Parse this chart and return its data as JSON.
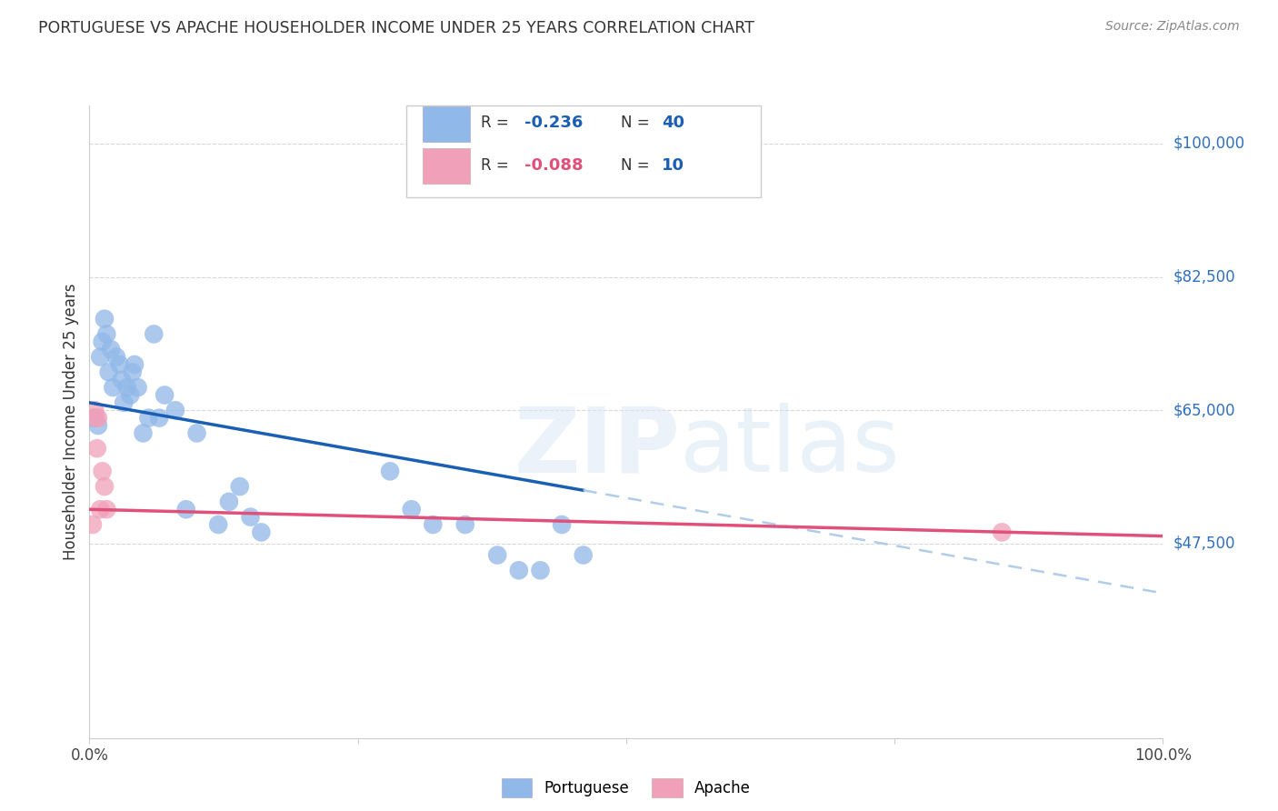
{
  "title": "PORTUGUESE VS APACHE HOUSEHOLDER INCOME UNDER 25 YEARS CORRELATION CHART",
  "source": "Source: ZipAtlas.com",
  "ylabel": "Householder Income Under 25 years",
  "y_tick_labels": [
    "$47,500",
    "$65,000",
    "$82,500",
    "$100,000"
  ],
  "y_tick_values": [
    47500,
    65000,
    82500,
    100000
  ],
  "xlim": [
    0.0,
    1.0
  ],
  "ylim": [
    22000,
    105000
  ],
  "portuguese_color": "#90b8e8",
  "apache_color": "#f0a0b8",
  "regression_blue": "#1a5fb4",
  "regression_pink": "#e0507a",
  "regression_dashed_color": "#b0cce8",
  "portuguese_x": [
    0.004,
    0.008,
    0.01,
    0.012,
    0.014,
    0.016,
    0.018,
    0.02,
    0.022,
    0.025,
    0.028,
    0.03,
    0.032,
    0.035,
    0.038,
    0.04,
    0.042,
    0.045,
    0.05,
    0.055,
    0.06,
    0.065,
    0.07,
    0.08,
    0.09,
    0.1,
    0.12,
    0.13,
    0.14,
    0.15,
    0.16,
    0.28,
    0.3,
    0.32,
    0.35,
    0.38,
    0.4,
    0.42,
    0.44,
    0.46
  ],
  "portuguese_y": [
    64000,
    63000,
    72000,
    74000,
    77000,
    75000,
    70000,
    73000,
    68000,
    72000,
    71000,
    69000,
    66000,
    68000,
    67000,
    70000,
    71000,
    68000,
    62000,
    64000,
    75000,
    64000,
    67000,
    65000,
    52000,
    62000,
    50000,
    53000,
    55000,
    51000,
    49000,
    57000,
    52000,
    50000,
    50000,
    46000,
    44000,
    44000,
    50000,
    46000
  ],
  "apache_x": [
    0.003,
    0.005,
    0.006,
    0.007,
    0.008,
    0.01,
    0.012,
    0.014,
    0.016,
    0.85
  ],
  "apache_y": [
    50000,
    65000,
    64000,
    60000,
    64000,
    52000,
    57000,
    55000,
    52000,
    49000
  ],
  "background_color": "#ffffff",
  "grid_color": "#d8d8d8",
  "blue_line_x_end": 0.46,
  "blue_intercept": 66000,
  "blue_slope": -25000,
  "pink_intercept": 52000,
  "pink_slope": -3500
}
